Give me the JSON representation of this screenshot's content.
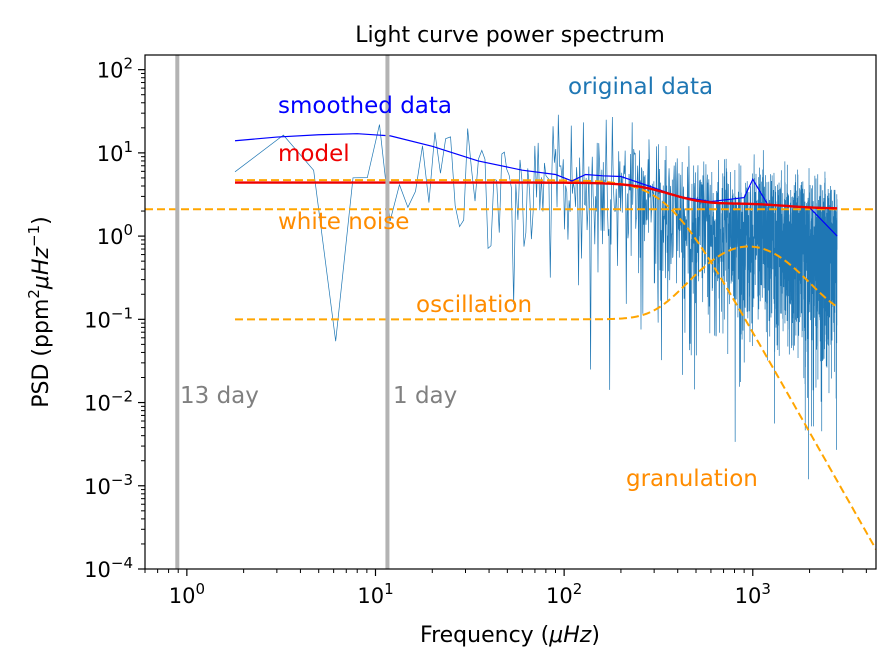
{
  "chart_data": {
    "type": "line",
    "title": "Light curve power spectrum",
    "xlabel_prefix": "Frequency (",
    "xlabel_unit": "μHz",
    "xlabel_suffix": ")",
    "ylabel_prefix": "PSD (ppm",
    "ylabel_unit_mid": "μHz",
    "ylabel_suffix": ")",
    "xscale": "log",
    "yscale": "log",
    "xlim": [
      0.6,
      4500
    ],
    "ylim": [
      0.0001,
      150
    ],
    "x_ticks": [
      {
        "value": 1,
        "base": "10",
        "exp": "0"
      },
      {
        "value": 10,
        "base": "10",
        "exp": "1"
      },
      {
        "value": 100,
        "base": "10",
        "exp": "2"
      },
      {
        "value": 1000,
        "base": "10",
        "exp": "3"
      }
    ],
    "y_ticks": [
      {
        "value": 0.0001,
        "base": "10",
        "exp": "−4"
      },
      {
        "value": 0.001,
        "base": "10",
        "exp": "−3"
      },
      {
        "value": 0.01,
        "base": "10",
        "exp": "−2"
      },
      {
        "value": 0.1,
        "base": "10",
        "exp": "−1"
      },
      {
        "value": 1,
        "base": "10",
        "exp": "0"
      },
      {
        "value": 10,
        "base": "10",
        "exp": "1"
      },
      {
        "value": 100,
        "base": "10",
        "exp": "2"
      }
    ],
    "vlines": [
      {
        "x": 0.89,
        "label": "13 day",
        "color": "#b3b3b3"
      },
      {
        "x": 11.57,
        "label": "1 day",
        "color": "#b3b3b3"
      }
    ],
    "labels": {
      "original": "original data",
      "smoothed": "smoothed data",
      "model": "model",
      "white_noise": "white noise",
      "oscillation": "oscillation",
      "granulation": "granulation"
    },
    "colors": {
      "original": "#1f77b4",
      "smoothed": "#0000ff",
      "model": "#ee0000",
      "components": "#ffa500",
      "component_labels": "#ff8c00",
      "vlines": "#b3b3b3",
      "vline_labels": "#808080"
    },
    "model_params": {
      "white_noise": 2.1,
      "granulation_amp": 4.7,
      "granulation_knee_uHz": 350,
      "granulation_exp": 4,
      "oscillation_base": 0.1,
      "oscillation_peak": 0.65,
      "oscillation_numax_uHz": 950,
      "oscillation_width_dex": 0.2
    },
    "series": [
      {
        "name": "original data",
        "x_range": [
          1.8,
          2800
        ],
        "note": "noisy periodogram, ~2800 bins"
      },
      {
        "name": "smoothed data",
        "x": [
          1.8,
          3,
          5,
          8,
          12,
          20,
          35,
          60,
          90,
          110,
          130,
          160,
          200,
          300,
          400,
          600,
          900,
          1000,
          1200,
          1600,
          2000,
          2800
        ],
        "y": [
          14,
          15.5,
          16.5,
          17,
          16,
          12,
          8,
          6.2,
          5.5,
          4.6,
          5.5,
          5.3,
          5.2,
          3.8,
          3.0,
          2.6,
          2.9,
          4.8,
          2.4,
          2.3,
          2.2,
          1.0
        ]
      },
      {
        "name": "model"
      },
      {
        "name": "white noise"
      },
      {
        "name": "granulation"
      },
      {
        "name": "oscillation"
      }
    ]
  }
}
